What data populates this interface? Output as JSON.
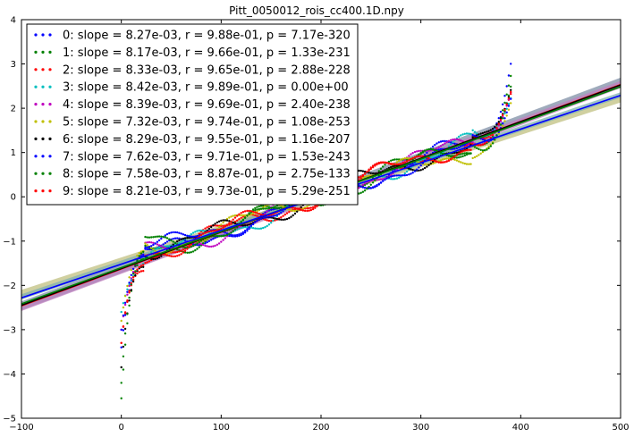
{
  "chart_data": {
    "type": "scatter",
    "title": "Pitt_0050012_rois_cc400.1D.npy",
    "xlabel": "",
    "ylabel": "",
    "xlim": [
      -100,
      500
    ],
    "ylim": [
      -5,
      4
    ],
    "xticks": [
      "−100",
      "0",
      "100",
      "200",
      "300",
      "400",
      "500"
    ],
    "yticks": [
      "−5",
      "−4",
      "−3",
      "−2",
      "−1",
      "0",
      "1",
      "2",
      "3",
      "4"
    ],
    "grid": false,
    "legend_position": "top-left",
    "n_points_per_series": 392,
    "series": [
      {
        "name": "0: slope = 8.27e-03, r = 9.88e-01, p = 7.17e-320",
        "color": "#0000ff",
        "slope": 0.00827,
        "y_at_0": -1.62,
        "y_min": -3.4,
        "y_max": 3.15,
        "tail_low": 0.45,
        "tail_high": 0.6
      },
      {
        "name": "1: slope = 8.17e-03, r = 9.66e-01, p = 1.33e-231",
        "color": "#008000",
        "slope": 0.00817,
        "y_at_0": -1.6,
        "y_min": -4.55,
        "y_max": 2.85,
        "tail_low": 1.25,
        "tail_high": 0.7
      },
      {
        "name": "2: slope = 8.33e-03, r = 9.65e-01, p = 2.88e-228",
        "color": "#ff0000",
        "slope": 0.00833,
        "y_at_0": -1.63,
        "y_min": -3.3,
        "y_max": 2.4,
        "tail_low": 0.7,
        "tail_high": 0.5
      },
      {
        "name": "3: slope = 8.42e-03, r = 9.89e-01, p = 0.00e+00",
        "color": "#00bfbf",
        "slope": 0.00842,
        "y_at_0": -1.65,
        "y_min": -2.6,
        "y_max": 2.3,
        "tail_low": 0.3,
        "tail_high": 0.4
      },
      {
        "name": "4: slope = 8.39e-03, r = 9.69e-01, p = 2.40e-238",
        "color": "#bf00bf",
        "slope": 0.00839,
        "y_at_0": -1.64,
        "y_min": -3.0,
        "y_max": 2.45,
        "tail_low": 0.6,
        "tail_high": 0.5
      },
      {
        "name": "5: slope = 7.32e-03, r = 9.74e-01, p = 1.08e-253",
        "color": "#bfbf00",
        "slope": 0.00732,
        "y_at_0": -1.45,
        "y_min": -2.8,
        "y_max": 2.2,
        "tail_low": 0.7,
        "tail_high": 0.5
      },
      {
        "name": "6: slope = 8.29e-03, r = 9.55e-01, p = 1.16e-207",
        "color": "#000000",
        "slope": 0.00829,
        "y_at_0": -1.62,
        "y_min": -3.85,
        "y_max": 2.5,
        "tail_low": 1.0,
        "tail_high": 0.55
      },
      {
        "name": "7: slope = 7.62e-03, r = 9.71e-01, p = 1.53e-243",
        "color": "#0000ff",
        "slope": 0.00762,
        "y_at_0": -1.5,
        "y_min": -3.0,
        "y_max": 2.3,
        "tail_low": 0.7,
        "tail_high": 0.5
      },
      {
        "name": "8: slope = 7.58e-03, r = 8.87e-01, p = 2.75e-133",
        "color": "#008000",
        "slope": 0.00758,
        "y_at_0": -1.49,
        "y_min": -4.2,
        "y_max": 2.6,
        "tail_low": 1.3,
        "tail_high": 0.75
      },
      {
        "name": "9: slope = 8.21e-03, r = 9.73e-01, p = 5.29e-251",
        "color": "#ff0000",
        "slope": 0.00821,
        "y_at_0": -1.6,
        "y_min": -3.3,
        "y_max": 2.45,
        "tail_low": 0.8,
        "tail_high": 0.55
      }
    ],
    "fit_lines": [
      {
        "color": "#7f8fa6",
        "slope": 0.00842,
        "y_at_0": -1.62,
        "band": 0.1
      },
      {
        "color": "#c080c0",
        "slope": 0.00839,
        "y_at_0": -1.66,
        "band": 0.08
      },
      {
        "color": "#c0c080",
        "slope": 0.00732,
        "y_at_0": -1.45,
        "band": 0.08
      },
      {
        "color": "#80b0b0",
        "slope": 0.0076,
        "y_at_0": -1.5,
        "band": 0.06
      },
      {
        "color": "#ff0000",
        "slope": 0.00833,
        "y_at_0": -1.63,
        "band": 0
      },
      {
        "color": "#000000",
        "slope": 0.00829,
        "y_at_0": -1.62,
        "band": 0
      },
      {
        "color": "#008000",
        "slope": 0.00817,
        "y_at_0": -1.6,
        "band": 0
      },
      {
        "color": "#0000ff",
        "slope": 0.00762,
        "y_at_0": -1.52,
        "band": 0
      }
    ]
  }
}
